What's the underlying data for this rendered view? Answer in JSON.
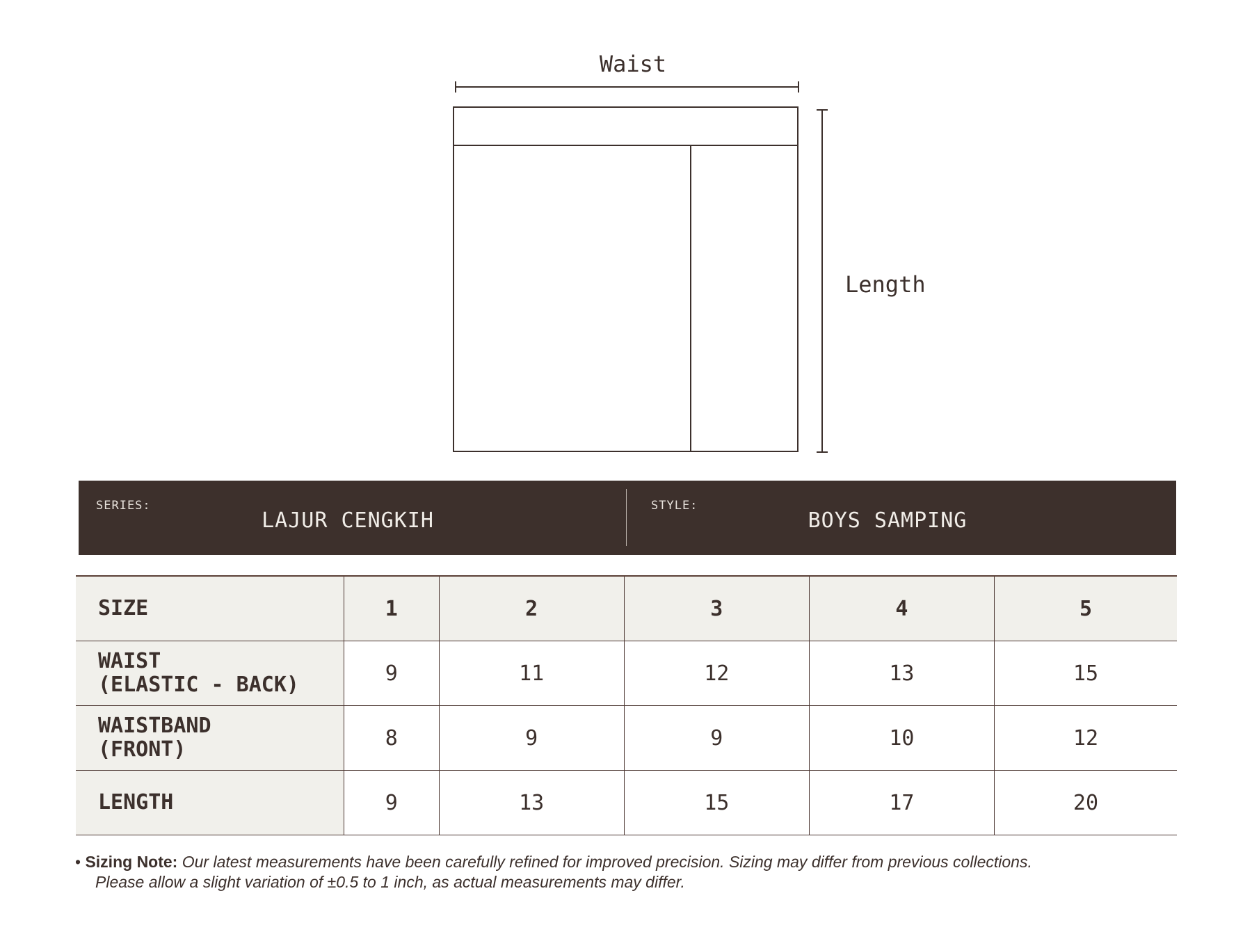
{
  "diagram": {
    "waist_label": "Waist",
    "length_label": "Length"
  },
  "header": {
    "series_label": "SERIES:",
    "series_value": "LAJUR CENGKIH",
    "style_label": "STYLE:",
    "style_value": "BOYS SAMPING"
  },
  "table": {
    "header": {
      "label": "SIZE",
      "sizes": [
        "1",
        "2",
        "3",
        "4",
        "5"
      ]
    },
    "rows": [
      {
        "label_line1": "WAIST",
        "label_line2": "(ELASTIC - BACK)",
        "values": [
          "9",
          "11",
          "12",
          "13",
          "15"
        ]
      },
      {
        "label_line1": "WAISTBAND",
        "label_line2": "(FRONT)",
        "values": [
          "8",
          "9",
          "9",
          "10",
          "12"
        ]
      },
      {
        "label_line1": "LENGTH",
        "label_line2": "",
        "values": [
          "9",
          "13",
          "15",
          "17",
          "20"
        ]
      }
    ]
  },
  "note": {
    "bullet": "•",
    "title": "Sizing Note:",
    "line1": " Our latest measurements have been carefully refined for improved precision. Sizing may differ from previous collections.",
    "line2": "Please allow a slight variation of ±0.5 to 1 inch, as actual measurements may differ."
  },
  "colors": {
    "dark": "#3d302c",
    "header_bg": "#f1f0eb",
    "line": "#4a3530"
  }
}
